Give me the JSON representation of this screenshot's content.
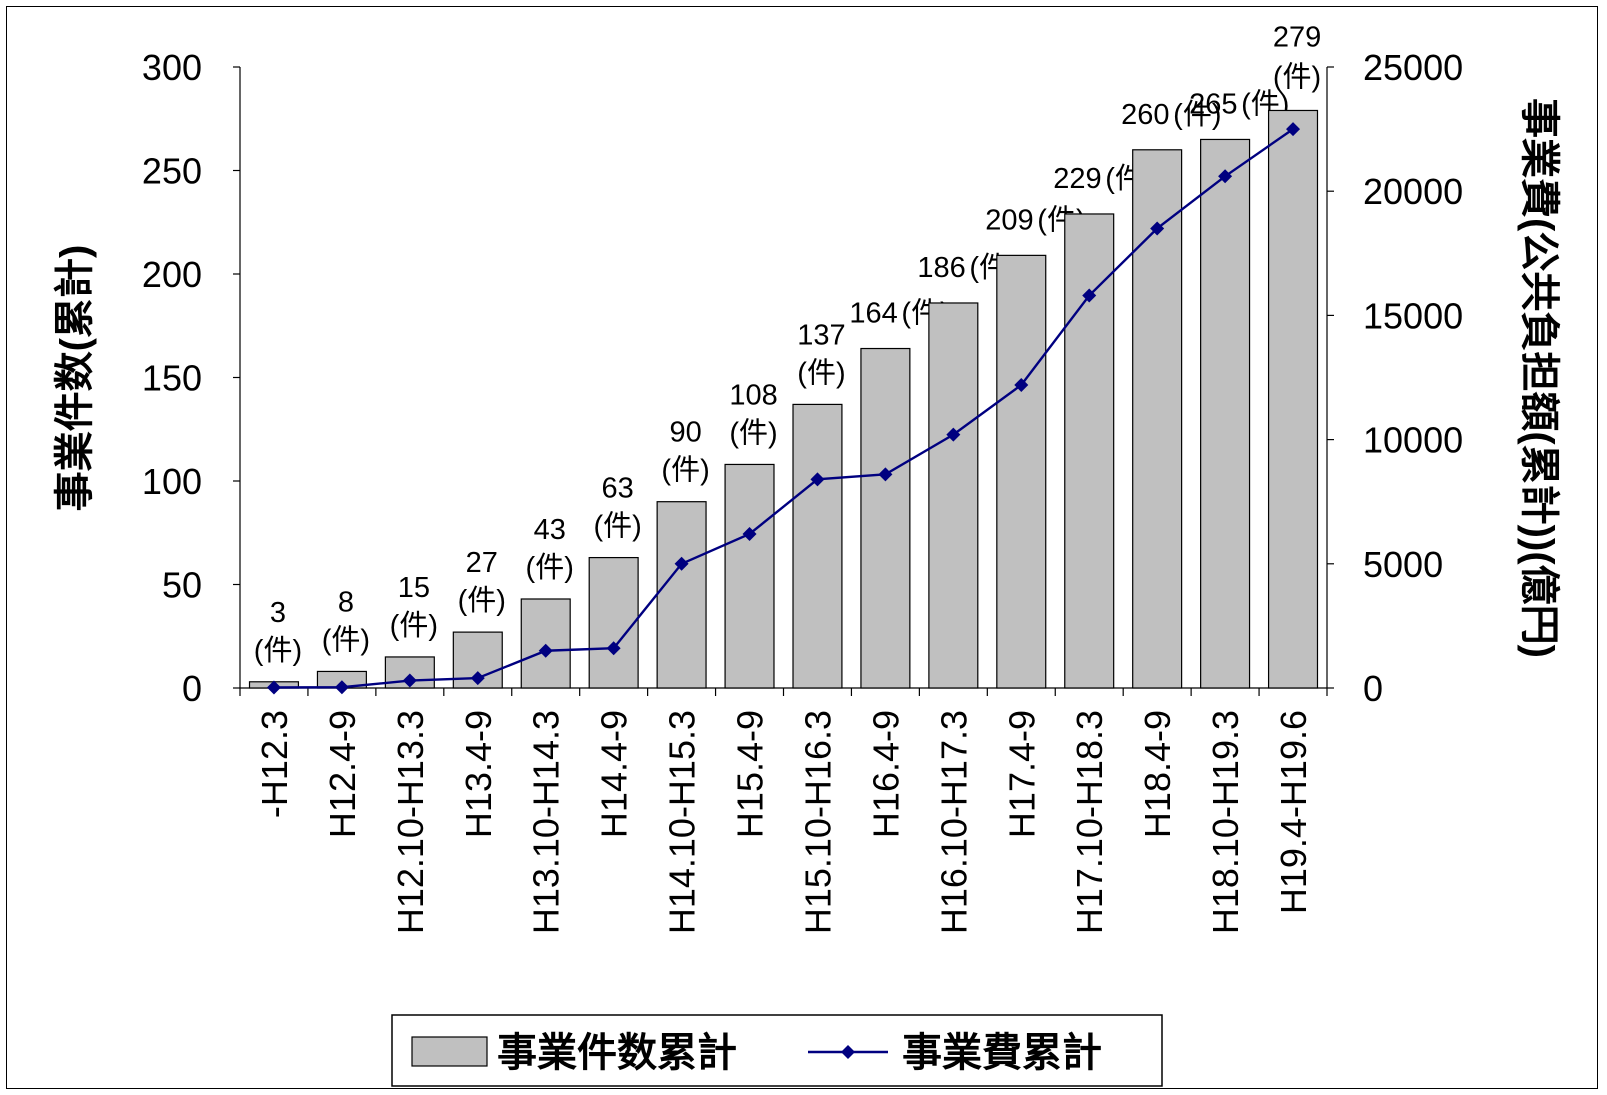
{
  "chart_data": {
    "type": "bar",
    "categories": [
      "-H12.3",
      "H12.4-9",
      "H12.10-H13.3",
      "H13.4-9",
      "H13.10-H14.3",
      "H14.4-9",
      "H14.10-H15.3",
      "H15.4-9",
      "H15.10-H16.3",
      "H16.4-9",
      "H16.10-H17.3",
      "H17.4-9",
      "H17.10-H18.3",
      "H18.4-9",
      "H18.10-H19.3",
      "H19.4-H19.6"
    ],
    "series": [
      {
        "name": "事業件数累計",
        "type": "bar",
        "axis": "left",
        "color": "#c0c0c0",
        "values": [
          3,
          8,
          15,
          27,
          43,
          63,
          90,
          108,
          137,
          164,
          186,
          209,
          229,
          260,
          265,
          279
        ]
      },
      {
        "name": "事業費累計",
        "type": "line",
        "axis": "right",
        "color": "#000080",
        "marker": "diamond",
        "values": [
          20,
          30,
          300,
          400,
          1500,
          1600,
          5000,
          6200,
          8400,
          8600,
          10200,
          12200,
          15800,
          18500,
          20600,
          22500
        ]
      }
    ],
    "data_labels": [
      {
        "value": "3",
        "unit": "(件)"
      },
      {
        "value": "8",
        "unit": "(件)"
      },
      {
        "value": "15",
        "unit": "(件)"
      },
      {
        "value": "27",
        "unit": "(件)"
      },
      {
        "value": "43",
        "unit": "(件)"
      },
      {
        "value": "63",
        "unit": "(件)"
      },
      {
        "value": "90",
        "unit": "(件)"
      },
      {
        "value": "108",
        "unit": "(件)"
      },
      {
        "value": "137",
        "unit": "(件)"
      },
      {
        "value": "164",
        "unit": "(件)"
      },
      {
        "value": "186",
        "unit": "(件)"
      },
      {
        "value": "209",
        "unit": "(件)"
      },
      {
        "value": "229",
        "unit": "(件)"
      },
      {
        "value": "260",
        "unit": "(件)"
      },
      {
        "value": "265",
        "unit": "(件)"
      },
      {
        "value": "279",
        "unit": "(件)"
      }
    ],
    "ylabel": "事業件数(累計)",
    "ylabel_right": "事業費(公共負担額(累計))(億円)",
    "ylim": [
      0,
      300
    ],
    "yticks": [
      "0",
      "50",
      "100",
      "150",
      "200",
      "250",
      "300"
    ],
    "ylim_right": [
      0,
      25000
    ],
    "yticks_right": [
      "0",
      "5000",
      "10000",
      "15000",
      "20000",
      "25000"
    ],
    "grid": false,
    "legend_position": "bottom"
  }
}
